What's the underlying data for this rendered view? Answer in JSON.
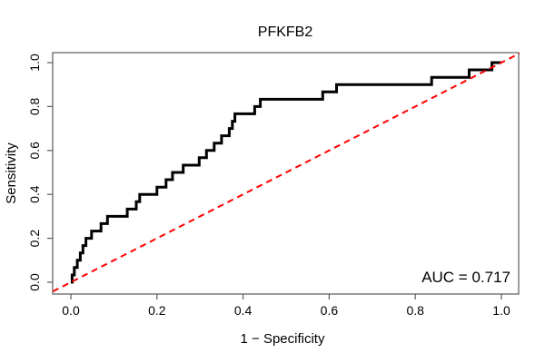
{
  "window": {
    "background": "#ffffff"
  },
  "chart_data": {
    "type": "line",
    "subtype": "roc-step-curve",
    "title": "PFKFB2",
    "xlabel": "1 − Specificity",
    "ylabel": "Sensitivity",
    "xlim": [
      0.0,
      1.0
    ],
    "ylim": [
      0.0,
      1.0
    ],
    "x_ticks": [
      "0.0",
      "0.2",
      "0.4",
      "0.6",
      "0.8",
      "1.0"
    ],
    "y_ticks": [
      "0.0",
      "0.2",
      "0.4",
      "0.6",
      "0.8",
      "1.0"
    ],
    "grid": false,
    "legend": "none",
    "annotation": "AUC = 0.717",
    "auc": 0.717,
    "colors": {
      "curve": "#000000",
      "diagonal": "#ff0000",
      "axis": "#5a5a5a"
    },
    "series": [
      {
        "name": "ROC curve",
        "style": "solid",
        "color": "#000000",
        "width": 3,
        "step_points": [
          [
            0.0,
            0.0
          ],
          [
            0.003,
            0.033
          ],
          [
            0.008,
            0.067
          ],
          [
            0.015,
            0.1
          ],
          [
            0.022,
            0.133
          ],
          [
            0.028,
            0.167
          ],
          [
            0.035,
            0.2
          ],
          [
            0.048,
            0.233
          ],
          [
            0.07,
            0.267
          ],
          [
            0.085,
            0.3
          ],
          [
            0.131,
            0.333
          ],
          [
            0.152,
            0.367
          ],
          [
            0.16,
            0.4
          ],
          [
            0.2,
            0.433
          ],
          [
            0.221,
            0.467
          ],
          [
            0.236,
            0.5
          ],
          [
            0.261,
            0.533
          ],
          [
            0.298,
            0.567
          ],
          [
            0.315,
            0.6
          ],
          [
            0.333,
            0.633
          ],
          [
            0.35,
            0.667
          ],
          [
            0.368,
            0.7
          ],
          [
            0.375,
            0.733
          ],
          [
            0.381,
            0.767
          ],
          [
            0.427,
            0.8
          ],
          [
            0.44,
            0.833
          ],
          [
            0.585,
            0.867
          ],
          [
            0.617,
            0.9
          ],
          [
            0.838,
            0.933
          ],
          [
            0.925,
            0.967
          ],
          [
            0.978,
            1.0
          ],
          [
            1.0,
            1.0
          ]
        ]
      },
      {
        "name": "chance line",
        "style": "dashed",
        "color": "#ff0000",
        "width": 2,
        "points": [
          [
            0.0,
            0.0
          ],
          [
            1.0,
            1.0
          ]
        ]
      }
    ]
  }
}
